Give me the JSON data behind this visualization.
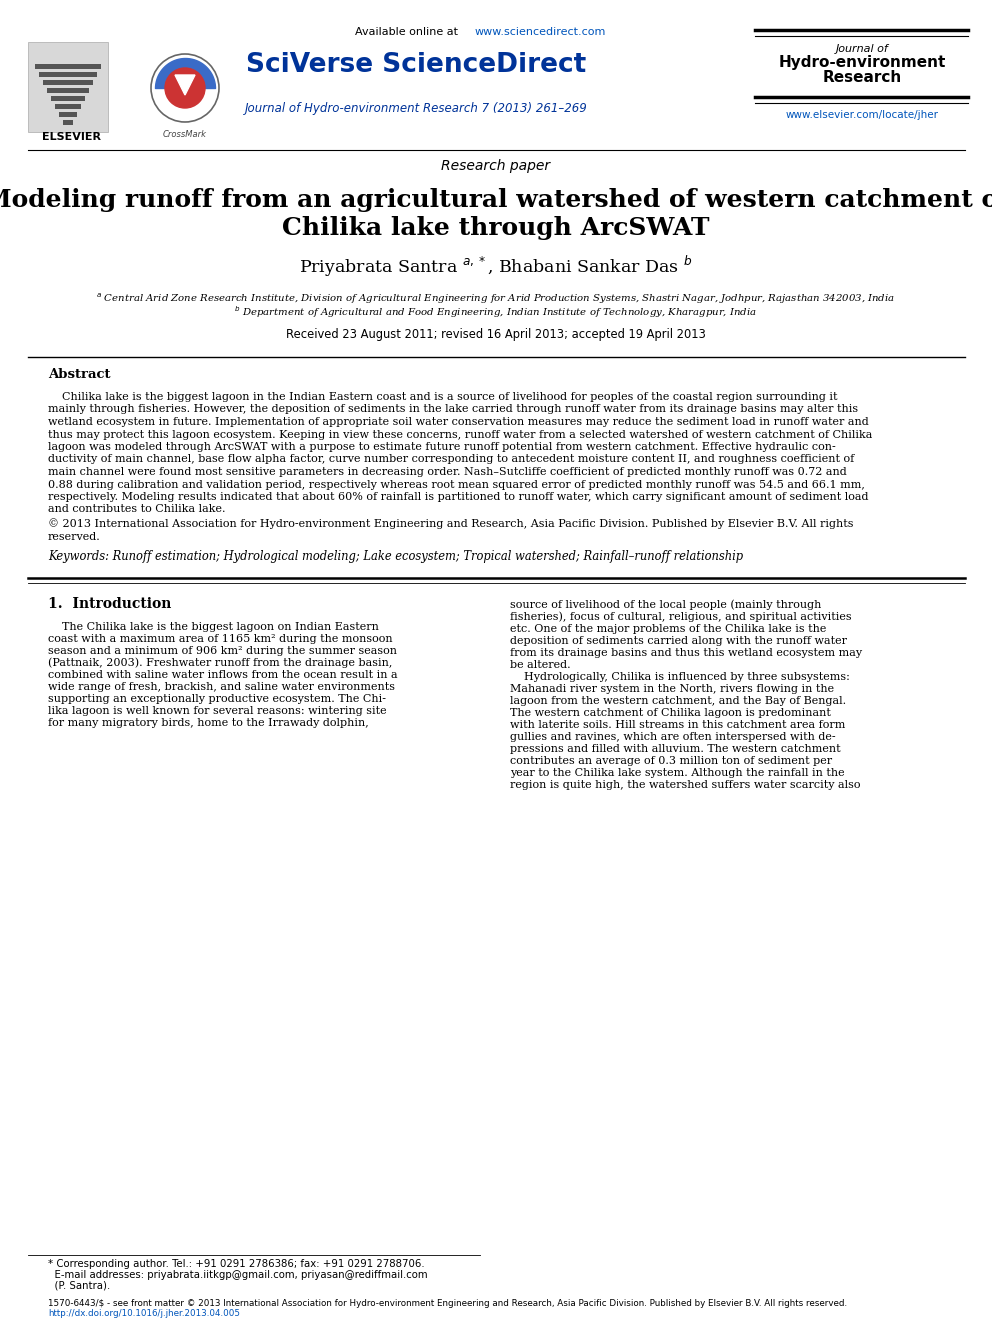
{
  "bg_color": "#ffffff",
  "available_online_prefix": "Available online at ",
  "available_online_url": "www.sciencedirect.com",
  "sciverse": "SciVerse ScienceDirect",
  "journal_line": "Journal of Hydro-environment Research 7 (2013) 261–269",
  "journal_right_line1": "Journal of",
  "journal_right_line2": "Hydro-environment",
  "journal_right_line3": "Research",
  "journal_url": "www.elsevier.com/locate/jher",
  "elsevier_text": "ELSEVIER",
  "paper_type": "Research paper",
  "title_line1": "Modeling runoff from an agricultural watershed of western catchment of",
  "title_line2": "Chilika lake through ArcSWAT",
  "author_line": "Priyabrata Santra $^{a,*}$, Bhabani Sankar Das $^{b}$",
  "affil1": "$^{a}$ Central Arid Zone Research Institute, Division of Agricultural Engineering for Arid Production Systems, Shastri Nagar, Jodhpur, Rajasthan 342003, India",
  "affil2": "$^{b}$ Department of Agricultural and Food Engineering, Indian Institute of Technology, Kharagpur, India",
  "received": "Received 23 August 2011; revised 16 April 2013; accepted 19 April 2013",
  "abstract_title": "Abstract",
  "abstract_lines": [
    "    Chilika lake is the biggest lagoon in the Indian Eastern coast and is a source of livelihood for peoples of the coastal region surrounding it",
    "mainly through fisheries. However, the deposition of sediments in the lake carried through runoff water from its drainage basins may alter this",
    "wetland ecosystem in future. Implementation of appropriate soil water conservation measures may reduce the sediment load in runoff water and",
    "thus may protect this lagoon ecosystem. Keeping in view these concerns, runoff water from a selected watershed of western catchment of Chilika",
    "lagoon was modeled through ArcSWAT with a purpose to estimate future runoff potential from western catchment. Effective hydraulic con-",
    "ductivity of main channel, base flow alpha factor, curve number corresponding to antecedent moisture content II, and roughness coefficient of",
    "main channel were found most sensitive parameters in decreasing order. Nash–Sutcliffe coefficient of predicted monthly runoff was 0.72 and",
    "0.88 during calibration and validation period, respectively whereas root mean squared error of predicted monthly runoff was 54.5 and 66.1 mm,",
    "respectively. Modeling results indicated that about 60% of rainfall is partitioned to runoff water, which carry significant amount of sediment load",
    "and contributes to Chilika lake."
  ],
  "copyright_lines": [
    "© 2013 International Association for Hydro-environment Engineering and Research, Asia Pacific Division. Published by Elsevier B.V. All rights",
    "reserved."
  ],
  "keywords": "Keywords: Runoff estimation; Hydrological modeling; Lake ecosystem; Tropical watershed; Rainfall–runoff relationship",
  "intro_heading": "1.  Introduction",
  "intro_col1_lines": [
    "    The Chilika lake is the biggest lagoon on Indian Eastern",
    "coast with a maximum area of 1165 km² during the monsoon",
    "season and a minimum of 906 km² during the summer season",
    "(Pattnaik, 2003). Freshwater runoff from the drainage basin,",
    "combined with saline water inflows from the ocean result in a",
    "wide range of fresh, brackish, and saline water environments",
    "supporting an exceptionally productive ecosystem. The Chi-",
    "lika lagoon is well known for several reasons: wintering site",
    "for many migratory birds, home to the Irrawady dolphin,"
  ],
  "intro_col2_lines": [
    "source of livelihood of the local people (mainly through",
    "fisheries), focus of cultural, religious, and spiritual activities",
    "etc. One of the major problems of the Chilika lake is the",
    "deposition of sediments carried along with the runoff water",
    "from its drainage basins and thus this wetland ecosystem may",
    "be altered.",
    "    Hydrologically, Chilika is influenced by three subsystems:",
    "Mahanadi river system in the North, rivers flowing in the",
    "lagoon from the western catchment, and the Bay of Bengal.",
    "The western catchment of Chilika lagoon is predominant",
    "with laterite soils. Hill streams in this catchment area form",
    "gullies and ravines, which are often interspersed with de-",
    "pressions and filled with alluvium. The western catchment",
    "contributes an average of 0.3 million ton of sediment per",
    "year to the Chilika lake system. Although the rainfall in the",
    "region is quite high, the watershed suffers water scarcity also"
  ],
  "footer_note_lines": [
    "* Corresponding author. Tel.: +91 0291 2786386; fax: +91 0291 2788706.",
    "  E-mail addresses: priyabrata.iitkgp@gmail.com, priyasan@rediffmail.com",
    "  (P. Santra)."
  ],
  "footer_issn": "1570-6443/$ - see front matter © 2013 International Association for Hydro-environment Engineering and Research, Asia Pacific Division. Published by Elsevier B.V. All rights reserved.",
  "footer_doi": "http://dx.doi.org/10.1016/j.jher.2013.04.005"
}
